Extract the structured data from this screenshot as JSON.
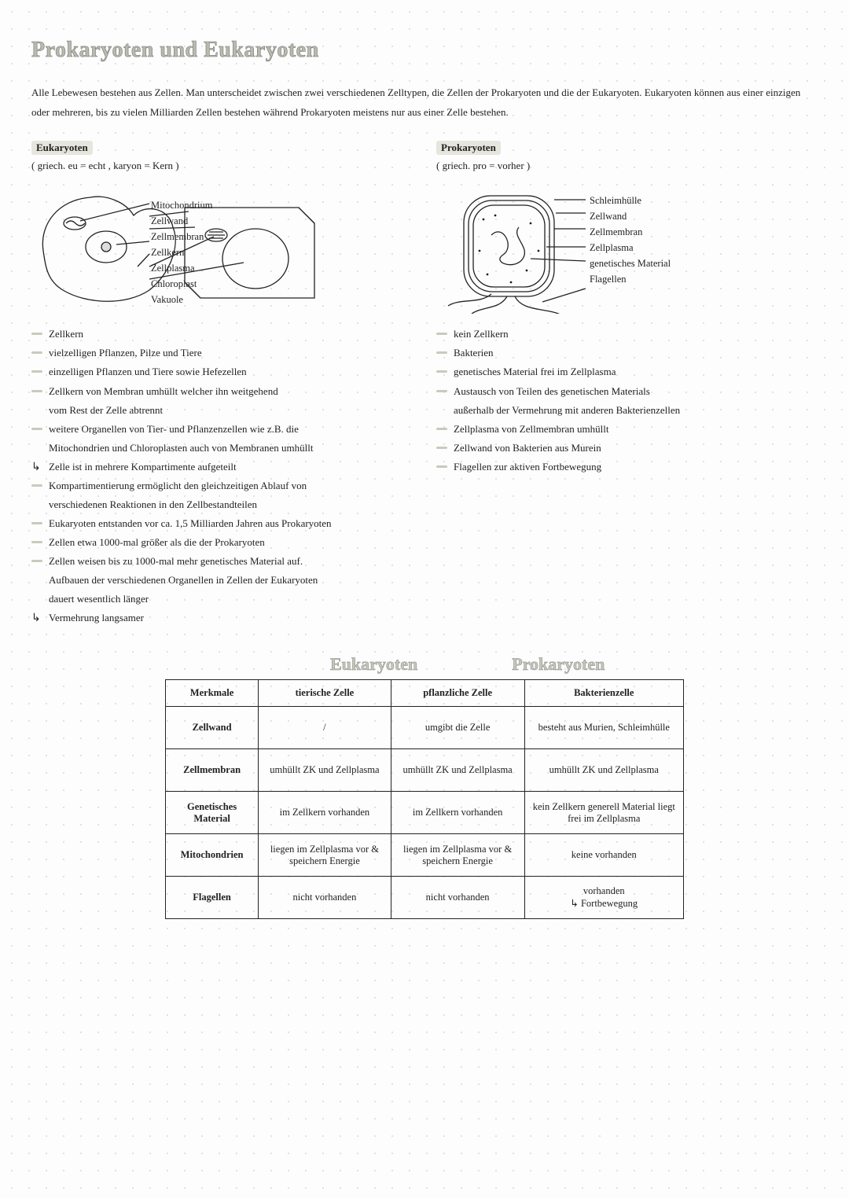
{
  "title": "Prokaryoten und Eukaryoten",
  "intro": "Alle Lebewesen bestehen aus Zellen. Man unterscheidet zwischen zwei verschiedenen Zelltypen, die Zellen der Prokaryoten und die der Eukaryoten. Eukaryoten können aus einer einzigen oder mehreren, bis zu vielen Milliarden Zellen bestehen während Prokaryoten meistens nur aus einer Zelle bestehen.",
  "euk": {
    "head": "Eukaryoten",
    "etym": "( griech. eu = echt , karyon = Kern )",
    "labels": [
      "Mitochondrium",
      "Zellwand",
      "Zellmembran",
      "Zellkern",
      "Zellplasma",
      "Chloroplast",
      "Vakuole"
    ],
    "bullets": [
      {
        "t": "Zellkern"
      },
      {
        "t": "vielzelligen Pflanzen, Pilze und Tiere"
      },
      {
        "t": "einzelligen Pflanzen und Tiere sowie Hefezellen"
      },
      {
        "t": "Zellkern von Membran umhüllt welcher ihn weitgehend",
        "c": "vom Rest der Zelle abtrennt"
      },
      {
        "t": "weitere Organellen von Tier- und Pflanzenzellen wie z.B. die",
        "c": "Mitochondrien und Chloroplasten auch von Membranen umhüllt"
      },
      {
        "t": "Zelle ist in mehrere Kompartimente aufgeteilt",
        "sub": true
      },
      {
        "t": "Kompartimentierung ermöglicht den gleichzeitigen Ablauf von",
        "c": "verschiedenen Reaktionen in den Zellbestandteilen"
      },
      {
        "t": "Eukaryoten entstanden vor ca. 1,5 Milliarden Jahren aus Prokaryoten"
      },
      {
        "t": "Zellen etwa 1000-mal größer als die der Prokaryoten"
      },
      {
        "t": "Zellen weisen bis zu 1000-mal mehr genetisches Material auf.",
        "c": "Aufbauen der verschiedenen Organellen in Zellen der Eukaryoten",
        "c2": "dauert wesentlich länger"
      },
      {
        "t": "Vermehrung langsamer",
        "sub": true
      }
    ]
  },
  "prok": {
    "head": "Prokaryoten",
    "etym": "( griech. pro = vorher )",
    "labels": [
      "Schleimhülle",
      "Zellwand",
      "Zellmembran",
      "Zellplasma",
      "genetisches Material",
      "Flagellen"
    ],
    "bullets": [
      {
        "t": "kein Zellkern"
      },
      {
        "t": "Bakterien"
      },
      {
        "t": "genetisches Material frei im Zellplasma"
      },
      {
        "t": "Austausch von Teilen des genetischen Materials",
        "c": "außerhalb der Vermehrung mit anderen Bakterienzellen"
      },
      {
        "t": "Zellplasma von Zellmembran umhüllt"
      },
      {
        "t": "Zellwand von Bakterien aus Murein"
      },
      {
        "t": "Flagellen zur aktiven Fortbewegung"
      }
    ]
  },
  "tabheads": {
    "e": "Eukaryoten",
    "p": "Prokaryoten"
  },
  "table": {
    "cols": [
      "Merkmale",
      "tierische Zelle",
      "pflanzliche Zelle",
      "Bakterienzelle"
    ],
    "rows": [
      [
        "Zellwand",
        "/",
        "umgibt die Zelle",
        "besteht aus Murien, Schleimhülle"
      ],
      [
        "Zellmembran",
        "umhüllt ZK und Zellplasma",
        "umhüllt ZK und Zellplasma",
        "umhüllt ZK und Zellplasma"
      ],
      [
        "Genetisches Material",
        "im Zellkern vorhanden",
        "im Zellkern vorhanden",
        "kein Zellkern generell Material liegt frei im Zellplasma"
      ],
      [
        "Mitochondrien",
        "liegen im Zellplasma vor & speichern Energie",
        "liegen im Zellplasma vor & speichern Energie",
        "keine vorhanden"
      ],
      [
        "Flagellen",
        "nicht vorhanden",
        "nicht vorhanden",
        "vorhanden\n↳ Fortbewegung"
      ]
    ]
  },
  "colors": {
    "accent": "#c9c9bd",
    "text": "#222",
    "bg": "#fdfdfd"
  }
}
